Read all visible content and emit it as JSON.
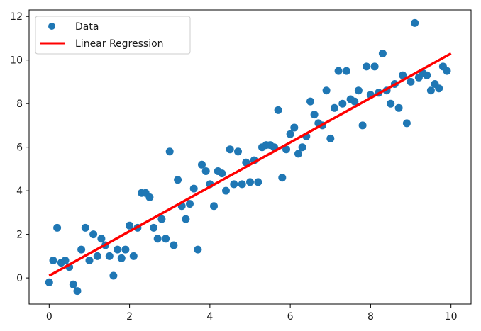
{
  "chart_data": {
    "type": "scatter",
    "title": "",
    "xlabel": "",
    "ylabel": "",
    "xlim": [
      -0.5,
      10.5
    ],
    "ylim": [
      -1.2,
      12.3
    ],
    "x_ticks": [
      0,
      2,
      4,
      6,
      8,
      10
    ],
    "y_ticks": [
      0,
      2,
      4,
      6,
      8,
      10,
      12
    ],
    "x_tick_labels": [
      "0",
      "2",
      "4",
      "6",
      "8",
      "10"
    ],
    "y_tick_labels": [
      "0",
      "2",
      "4",
      "6",
      "8",
      "10",
      "12"
    ],
    "grid": false,
    "legend_position": "upper-left",
    "series": [
      {
        "name": "Data",
        "kind": "scatter",
        "color": "#1f77b4",
        "points": [
          [
            0.0,
            -0.2
          ],
          [
            0.1,
            0.8
          ],
          [
            0.2,
            2.3
          ],
          [
            0.3,
            0.7
          ],
          [
            0.4,
            0.8
          ],
          [
            0.5,
            0.5
          ],
          [
            0.6,
            -0.3
          ],
          [
            0.7,
            -0.6
          ],
          [
            0.8,
            1.3
          ],
          [
            0.9,
            2.3
          ],
          [
            1.0,
            0.8
          ],
          [
            1.1,
            2.0
          ],
          [
            1.2,
            1.0
          ],
          [
            1.3,
            1.8
          ],
          [
            1.4,
            1.5
          ],
          [
            1.5,
            1.0
          ],
          [
            1.6,
            0.1
          ],
          [
            1.7,
            1.3
          ],
          [
            1.8,
            0.9
          ],
          [
            1.9,
            1.3
          ],
          [
            2.0,
            2.4
          ],
          [
            2.1,
            1.0
          ],
          [
            2.2,
            2.3
          ],
          [
            2.3,
            3.9
          ],
          [
            2.4,
            3.9
          ],
          [
            2.5,
            3.7
          ],
          [
            2.6,
            2.3
          ],
          [
            2.7,
            1.8
          ],
          [
            2.8,
            2.7
          ],
          [
            2.9,
            1.8
          ],
          [
            3.0,
            5.8
          ],
          [
            3.1,
            1.5
          ],
          [
            3.2,
            4.5
          ],
          [
            3.3,
            3.3
          ],
          [
            3.4,
            2.7
          ],
          [
            3.5,
            3.4
          ],
          [
            3.6,
            4.1
          ],
          [
            3.7,
            1.3
          ],
          [
            3.8,
            5.2
          ],
          [
            3.9,
            4.9
          ],
          [
            4.0,
            4.3
          ],
          [
            4.1,
            3.3
          ],
          [
            4.2,
            4.9
          ],
          [
            4.3,
            4.8
          ],
          [
            4.4,
            4.0
          ],
          [
            4.5,
            5.9
          ],
          [
            4.6,
            4.3
          ],
          [
            4.7,
            5.8
          ],
          [
            4.8,
            4.3
          ],
          [
            4.9,
            5.3
          ],
          [
            5.0,
            4.4
          ],
          [
            5.1,
            5.4
          ],
          [
            5.2,
            4.4
          ],
          [
            5.3,
            6.0
          ],
          [
            5.4,
            6.1
          ],
          [
            5.5,
            6.1
          ],
          [
            5.6,
            6.0
          ],
          [
            5.7,
            7.7
          ],
          [
            5.8,
            4.6
          ],
          [
            5.9,
            5.9
          ],
          [
            6.0,
            6.6
          ],
          [
            6.1,
            6.9
          ],
          [
            6.2,
            5.7
          ],
          [
            6.3,
            6.0
          ],
          [
            6.4,
            6.5
          ],
          [
            6.5,
            8.1
          ],
          [
            6.6,
            7.5
          ],
          [
            6.7,
            7.1
          ],
          [
            6.8,
            7.0
          ],
          [
            6.9,
            8.6
          ],
          [
            7.0,
            6.4
          ],
          [
            7.1,
            7.8
          ],
          [
            7.2,
            9.5
          ],
          [
            7.3,
            8.0
          ],
          [
            7.4,
            9.5
          ],
          [
            7.5,
            8.2
          ],
          [
            7.6,
            8.1
          ],
          [
            7.7,
            8.6
          ],
          [
            7.8,
            7.0
          ],
          [
            7.9,
            9.7
          ],
          [
            8.0,
            8.4
          ],
          [
            8.1,
            9.7
          ],
          [
            8.2,
            8.5
          ],
          [
            8.3,
            10.3
          ],
          [
            8.4,
            8.6
          ],
          [
            8.5,
            8.0
          ],
          [
            8.6,
            8.9
          ],
          [
            8.7,
            7.8
          ],
          [
            8.8,
            9.3
          ],
          [
            8.9,
            7.1
          ],
          [
            9.0,
            9.0
          ],
          [
            9.1,
            11.7
          ],
          [
            9.2,
            9.2
          ],
          [
            9.3,
            9.4
          ],
          [
            9.4,
            9.3
          ],
          [
            9.5,
            8.6
          ],
          [
            9.6,
            8.9
          ],
          [
            9.7,
            8.7
          ],
          [
            9.8,
            9.7
          ],
          [
            9.9,
            9.5
          ]
        ]
      },
      {
        "name": "Linear Regression",
        "kind": "line",
        "color": "#ff0000",
        "points": [
          [
            0,
            0.1
          ],
          [
            10,
            10.3
          ]
        ]
      }
    ]
  }
}
